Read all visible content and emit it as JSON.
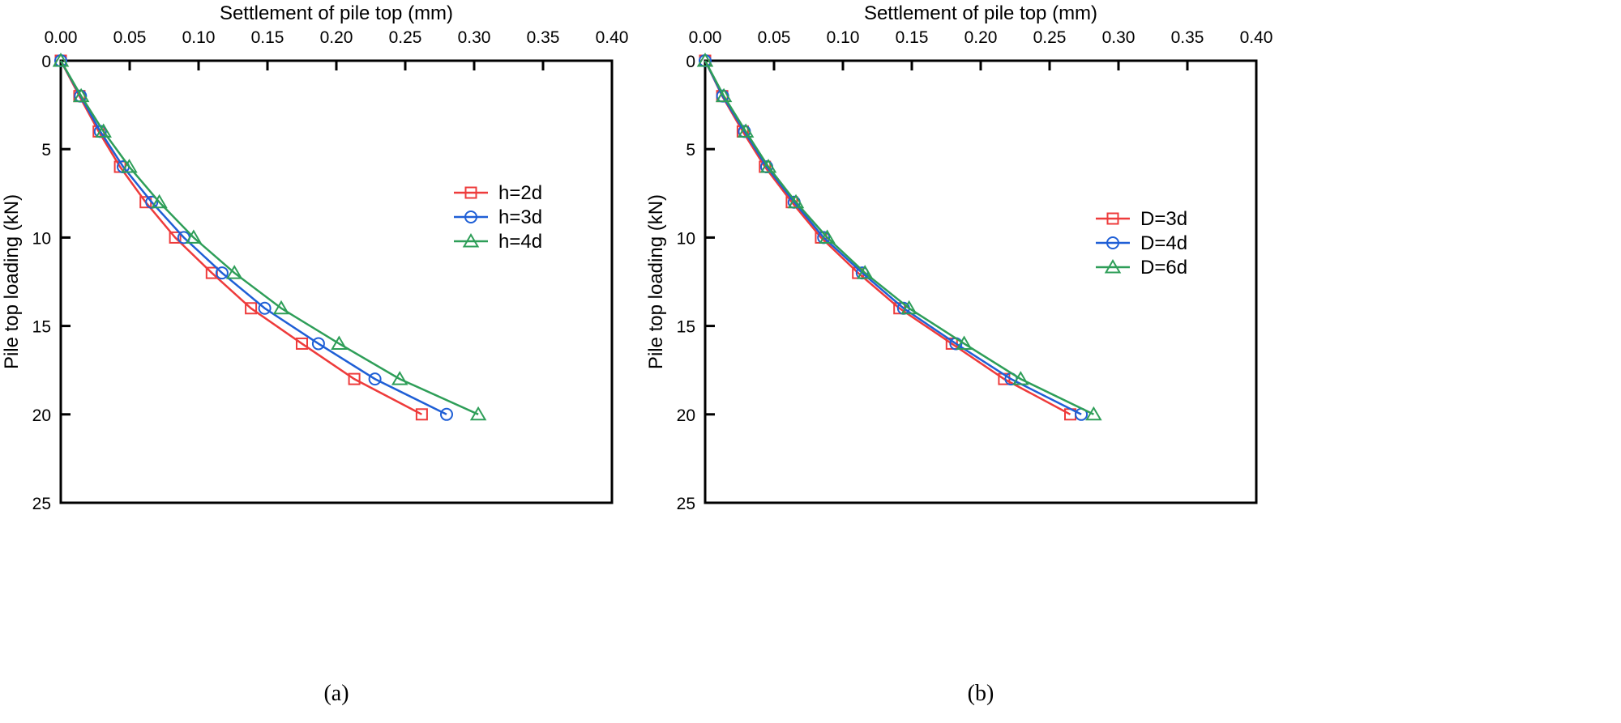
{
  "chart_data": [
    {
      "type": "line",
      "panel_label": "(a)",
      "xlabel": "Settlement of pile top (mm)",
      "ylabel": "Pile top loading (kN)",
      "xlim": [
        0,
        0.4
      ],
      "ylim": [
        0,
        25
      ],
      "y_inverted": true,
      "x_axis_position": "top",
      "xticks": [
        "0.00",
        "0.05",
        "0.10",
        "0.15",
        "0.20",
        "0.25",
        "0.30",
        "0.35",
        "0.40"
      ],
      "yticks": [
        "0",
        "5",
        "10",
        "15",
        "20",
        "25"
      ],
      "grid": false,
      "legend_position": "right-middle",
      "y": [
        0,
        2,
        4,
        6,
        8,
        10,
        12,
        14,
        16,
        18,
        20
      ],
      "series": [
        {
          "name": "h=2d",
          "color": "#ee3b3b",
          "marker": "square",
          "x": [
            0,
            0.0135,
            0.0275,
            0.043,
            0.0616,
            0.083,
            0.1096,
            0.138,
            0.175,
            0.213,
            0.262
          ]
        },
        {
          "name": "h=3d",
          "color": "#1f5fd6",
          "marker": "circle",
          "x": [
            0,
            0.0143,
            0.0287,
            0.0453,
            0.066,
            0.0893,
            0.117,
            0.148,
            0.187,
            0.228,
            0.28
          ]
        },
        {
          "name": "h=4d",
          "color": "#2e9e58",
          "marker": "triangle",
          "x": [
            0,
            0.0148,
            0.031,
            0.0497,
            0.0715,
            0.0964,
            0.126,
            0.16,
            0.202,
            0.246,
            0.303
          ]
        }
      ]
    },
    {
      "type": "line",
      "panel_label": "(b)",
      "xlabel": "Settlement of pile top (mm)",
      "ylabel": "Pile top loading (kN)",
      "xlim": [
        0,
        0.4
      ],
      "ylim": [
        0,
        25
      ],
      "y_inverted": true,
      "x_axis_position": "top",
      "xticks": [
        "0.00",
        "0.05",
        "0.10",
        "0.15",
        "0.20",
        "0.25",
        "0.30",
        "0.35",
        "0.40"
      ],
      "yticks": [
        "0",
        "5",
        "10",
        "15",
        "20",
        "25"
      ],
      "grid": false,
      "legend_position": "right-middle",
      "y": [
        0,
        2,
        4,
        6,
        8,
        10,
        12,
        14,
        16,
        18,
        20
      ],
      "series": [
        {
          "name": "D=3d",
          "color": "#ee3b3b",
          "marker": "square",
          "x": [
            0,
            0.0124,
            0.0273,
            0.0434,
            0.0629,
            0.0841,
            0.111,
            0.141,
            0.179,
            0.217,
            0.265
          ]
        },
        {
          "name": "D=4d",
          "color": "#1f5fd6",
          "marker": "circle",
          "x": [
            0,
            0.0127,
            0.0285,
            0.0447,
            0.0646,
            0.086,
            0.114,
            0.144,
            0.182,
            0.222,
            0.273
          ]
        },
        {
          "name": "D=6d",
          "color": "#2e9e58",
          "marker": "triangle",
          "x": [
            0,
            0.0136,
            0.0295,
            0.0459,
            0.0659,
            0.0886,
            0.116,
            0.148,
            0.188,
            0.229,
            0.282
          ]
        }
      ]
    }
  ]
}
